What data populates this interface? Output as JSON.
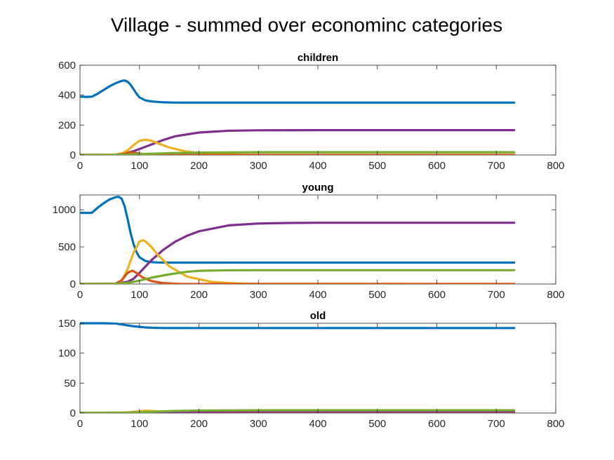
{
  "figure": {
    "title": "Village - summed over econominc categories"
  },
  "colors": {
    "blue": "#0072BD",
    "red": "#D95319",
    "yellow": "#EDB120",
    "purple": "#7E2F8E",
    "green": "#77AC30"
  },
  "chart_data": [
    {
      "type": "line",
      "title": "children",
      "xlim": [
        0,
        800
      ],
      "ylim": [
        0,
        600
      ],
      "x_ticks": [
        "0",
        "100",
        "200",
        "300",
        "400",
        "500",
        "600",
        "700",
        "800"
      ],
      "y_ticks": [
        "0",
        "200",
        "400",
        "600"
      ],
      "grid": false,
      "series": [
        {
          "color": "#0072BD",
          "x": [
            0,
            10,
            20,
            30,
            40,
            50,
            60,
            70,
            75,
            80,
            85,
            90,
            95,
            100,
            110,
            120,
            140,
            160,
            200,
            300,
            730
          ],
          "y": [
            390,
            388,
            390,
            410,
            435,
            460,
            480,
            495,
            498,
            490,
            470,
            440,
            410,
            385,
            365,
            358,
            352,
            350,
            350,
            350,
            350
          ]
        },
        {
          "color": "#7E2F8E",
          "x": [
            0,
            60,
            80,
            90,
            100,
            120,
            140,
            160,
            200,
            250,
            300,
            400,
            730
          ],
          "y": [
            0,
            2,
            15,
            25,
            40,
            70,
            100,
            125,
            150,
            162,
            165,
            166,
            166
          ]
        },
        {
          "color": "#EDB120",
          "x": [
            0,
            60,
            70,
            80,
            90,
            100,
            110,
            120,
            130,
            150,
            180,
            220,
            260,
            300,
            730
          ],
          "y": [
            0,
            2,
            10,
            30,
            65,
            95,
            102,
            95,
            80,
            50,
            22,
            7,
            2,
            0,
            0
          ]
        },
        {
          "color": "#D95319",
          "x": [
            0,
            60,
            75,
            85,
            95,
            110,
            130,
            160,
            730
          ],
          "y": [
            0,
            0,
            8,
            18,
            12,
            5,
            2,
            0,
            0
          ]
        },
        {
          "color": "#77AC30",
          "x": [
            0,
            60,
            100,
            150,
            200,
            300,
            730
          ],
          "y": [
            0,
            1,
            6,
            12,
            16,
            18,
            18
          ]
        }
      ]
    },
    {
      "type": "line",
      "title": "young",
      "xlim": [
        0,
        800
      ],
      "ylim": [
        0,
        1200
      ],
      "x_ticks": [
        "0",
        "100",
        "200",
        "300",
        "400",
        "500",
        "600",
        "700",
        "800"
      ],
      "y_ticks": [
        "0",
        "500",
        "1000"
      ],
      "grid": false,
      "series": [
        {
          "color": "#0072BD",
          "x": [
            0,
            10,
            20,
            30,
            40,
            50,
            60,
            65,
            70,
            75,
            80,
            85,
            90,
            95,
            100,
            110,
            120,
            130,
            150,
            200,
            730
          ],
          "y": [
            960,
            958,
            960,
            1030,
            1090,
            1140,
            1170,
            1175,
            1150,
            1050,
            880,
            690,
            540,
            430,
            360,
            310,
            295,
            290,
            288,
            288,
            288
          ]
        },
        {
          "color": "#7E2F8E",
          "x": [
            0,
            60,
            80,
            90,
            100,
            120,
            140,
            160,
            180,
            200,
            250,
            300,
            350,
            400,
            730
          ],
          "y": [
            0,
            3,
            30,
            70,
            150,
            320,
            460,
            570,
            650,
            710,
            790,
            815,
            822,
            825,
            825
          ]
        },
        {
          "color": "#EDB120",
          "x": [
            0,
            60,
            70,
            80,
            90,
            100,
            105,
            110,
            120,
            130,
            150,
            180,
            220,
            260,
            300,
            730
          ],
          "y": [
            0,
            5,
            40,
            200,
            420,
            570,
            590,
            575,
            500,
            400,
            240,
            100,
            30,
            8,
            2,
            0
          ]
        },
        {
          "color": "#D95319",
          "x": [
            0,
            60,
            70,
            80,
            88,
            95,
            105,
            120,
            140,
            170,
            730
          ],
          "y": [
            0,
            5,
            50,
            150,
            180,
            150,
            90,
            40,
            12,
            0,
            0
          ]
        },
        {
          "color": "#77AC30",
          "x": [
            0,
            60,
            80,
            100,
            120,
            150,
            180,
            200,
            250,
            300,
            730
          ],
          "y": [
            0,
            2,
            15,
            45,
            85,
            130,
            165,
            178,
            185,
            186,
            186
          ]
        }
      ]
    },
    {
      "type": "line",
      "title": "old",
      "xlim": [
        0,
        800
      ],
      "ylim": [
        0,
        150
      ],
      "x_ticks": [
        "0",
        "100",
        "200",
        "300",
        "400",
        "500",
        "600",
        "700",
        "800"
      ],
      "y_ticks": [
        "0",
        "50",
        "100",
        "150"
      ],
      "grid": false,
      "series": [
        {
          "color": "#0072BD",
          "x": [
            0,
            40,
            60,
            70,
            80,
            90,
            100,
            110,
            120,
            140,
            200,
            730
          ],
          "y": [
            150,
            150,
            149.5,
            148,
            146.5,
            145,
            144,
            143,
            142.5,
            142,
            142,
            142
          ]
        },
        {
          "color": "#EDB120",
          "x": [
            0,
            80,
            100,
            110,
            120,
            140,
            170,
            200,
            730
          ],
          "y": [
            0,
            1,
            3,
            4,
            3.5,
            2,
            0.8,
            0.2,
            0
          ]
        },
        {
          "color": "#D95319",
          "x": [
            0,
            80,
            95,
            110,
            130,
            730
          ],
          "y": [
            0,
            0.5,
            1,
            0.5,
            0.1,
            0
          ]
        },
        {
          "color": "#7E2F8E",
          "x": [
            0,
            80,
            120,
            200,
            300,
            730
          ],
          "y": [
            0,
            0.5,
            1.5,
            2.2,
            2.4,
            2.4
          ]
        },
        {
          "color": "#77AC30",
          "x": [
            0,
            80,
            120,
            160,
            200,
            300,
            730
          ],
          "y": [
            0,
            0.5,
            2,
            3.5,
            4.2,
            4.5,
            4.5
          ]
        }
      ]
    }
  ]
}
